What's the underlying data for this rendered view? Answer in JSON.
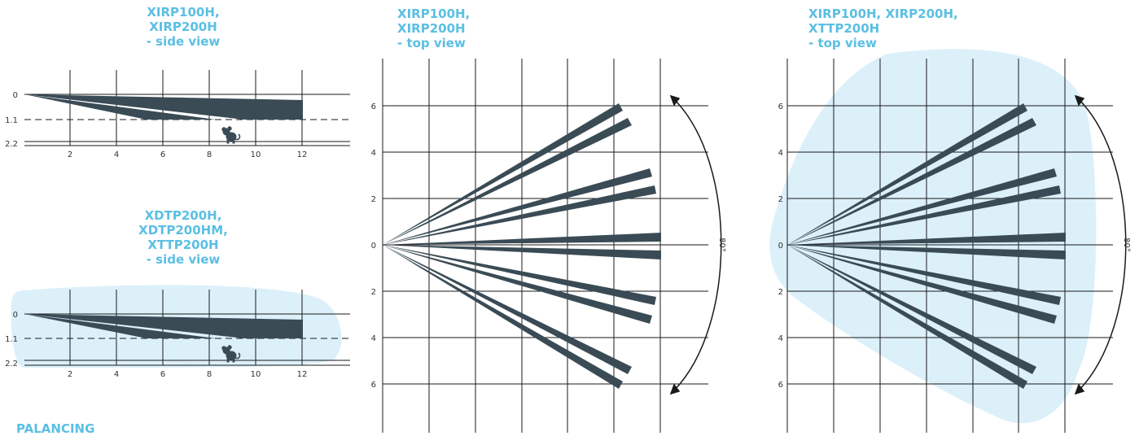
{
  "titles": {
    "side_top": "XIRP100H,\nXIRP200H\n- side view",
    "side_bottom": "XDTP200H,\nXDTP200HM,\nXTTP200H\n- side view",
    "top_middle": "XIRP100H,\nXIRP200H\n- top view",
    "top_right": "XIRP100H, XIRP200H,\nXTTP200H\n- top view",
    "footer_partial": "PALANCING"
  },
  "side_view": {
    "x_ticks": [
      "2",
      "4",
      "6",
      "8",
      "10",
      "12"
    ],
    "y_ticks": [
      "0",
      "1.1",
      "2.2"
    ]
  },
  "top_view": {
    "y_ticks": [
      "6",
      "4",
      "2",
      "0",
      "2",
      "4",
      "6"
    ],
    "angle_label": "80°"
  },
  "colors": {
    "title": "#5bbfe3",
    "beam": "#3a4b55",
    "microwave_zone": "#dcf0f9",
    "grid": "#1a1a1a"
  },
  "icons": {
    "pet": "mouse-icon"
  }
}
